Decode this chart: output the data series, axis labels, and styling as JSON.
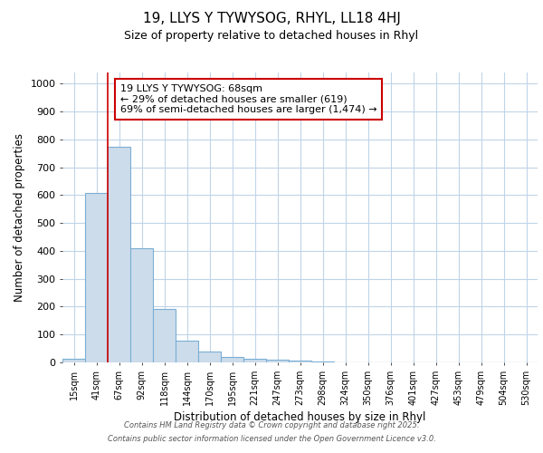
{
  "title_line1": "19, LLYS Y TYWYSOG, RHYL, LL18 4HJ",
  "title_line2": "Size of property relative to detached houses in Rhyl",
  "xlabel": "Distribution of detached houses by size in Rhyl",
  "ylabel": "Number of detached properties",
  "bin_labels": [
    "15sqm",
    "41sqm",
    "67sqm",
    "92sqm",
    "118sqm",
    "144sqm",
    "170sqm",
    "195sqm",
    "221sqm",
    "247sqm",
    "273sqm",
    "298sqm",
    "324sqm",
    "350sqm",
    "376sqm",
    "401sqm",
    "427sqm",
    "453sqm",
    "479sqm",
    "504sqm",
    "530sqm"
  ],
  "bin_values": [
    12,
    608,
    775,
    410,
    193,
    78,
    40,
    18,
    14,
    10,
    8,
    3,
    0,
    0,
    0,
    0,
    0,
    0,
    0,
    0,
    0
  ],
  "bar_color": "#cddceb",
  "bar_edge_color": "#7aafd4",
  "grid_color": "#c0d4e8",
  "red_line_color": "#cc0000",
  "annotation_text": "19 LLYS Y TYWYSOG: 68sqm\n← 29% of detached houses are smaller (619)\n69% of semi-detached houses are larger (1,474) →",
  "annotation_box_color": "#ffffff",
  "annotation_box_edge_color": "#cc0000",
  "ylim": [
    0,
    1040
  ],
  "yticks": [
    0,
    100,
    200,
    300,
    400,
    500,
    600,
    700,
    800,
    900,
    1000
  ],
  "footer_line1": "Contains HM Land Registry data © Crown copyright and database right 2025.",
  "footer_line2": "Contains public sector information licensed under the Open Government Licence v3.0.",
  "background_color": "#ffffff",
  "fig_width": 6.0,
  "fig_height": 5.0,
  "dpi": 100
}
